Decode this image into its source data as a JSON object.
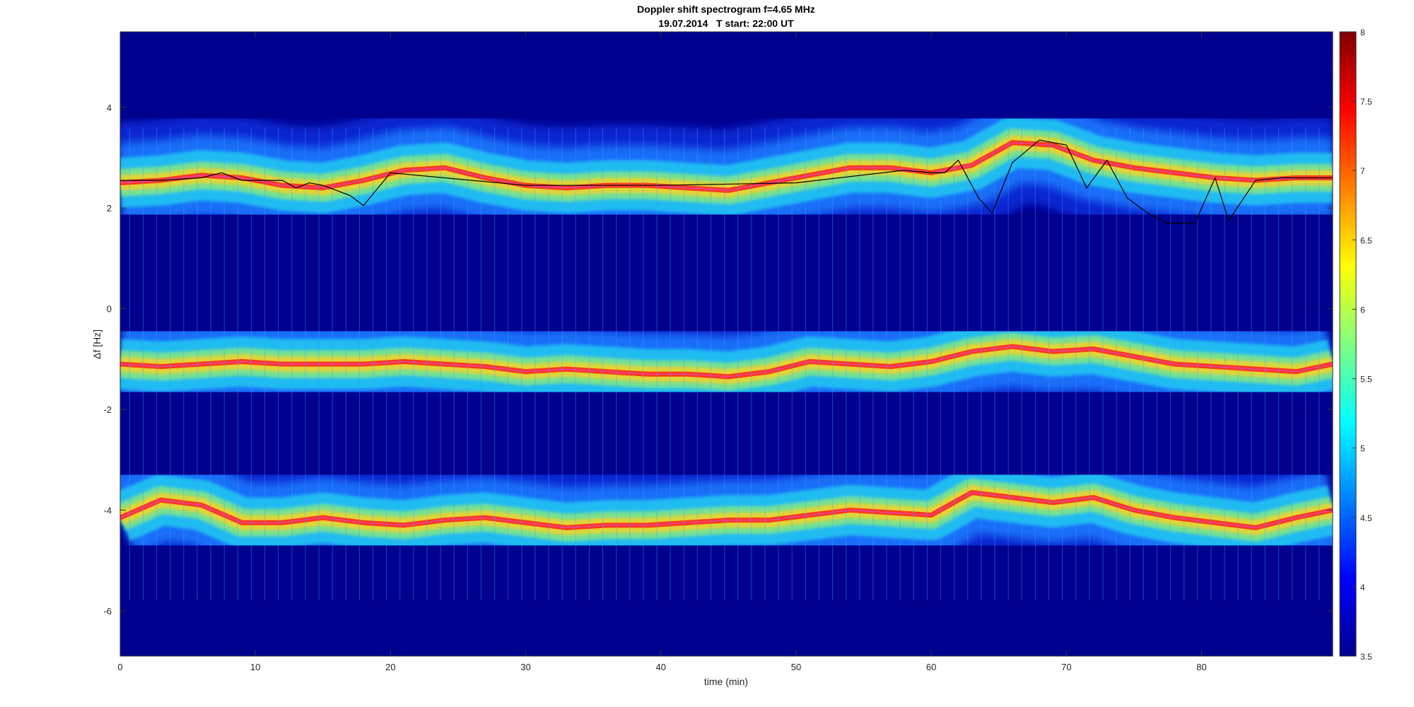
{
  "chart_data": {
    "type": "heatmap",
    "title": "Doppler shift spectrogram f=4.65 MHz",
    "subtitle": "19.07.2014   T start: 22:00 UT",
    "xlabel": "time (min)",
    "ylabel": "Δf [Hz]",
    "xlim": [
      0,
      89.7
    ],
    "ylim": [
      -6.9,
      5.5
    ],
    "x_ticks": [
      0,
      10,
      20,
      30,
      40,
      50,
      60,
      70,
      80
    ],
    "y_ticks": [
      -6,
      -4,
      -2,
      0,
      2,
      4
    ],
    "colorbar": {
      "colormap": "jet",
      "range": [
        3.5,
        8
      ],
      "ticks": [
        3.5,
        4,
        4.5,
        5,
        5.5,
        6,
        6.5,
        7,
        7.5,
        8
      ]
    },
    "bands": [
      {
        "x": [
          0,
          3,
          6,
          9,
          12,
          15,
          18,
          21,
          24,
          27,
          30,
          33,
          36,
          39,
          42,
          45,
          48,
          51,
          54,
          57,
          60,
          63,
          66,
          69,
          72,
          75,
          78,
          81,
          84,
          87,
          89.7
        ],
        "y": [
          2.5,
          2.55,
          2.65,
          2.6,
          2.45,
          2.4,
          2.55,
          2.75,
          2.8,
          2.6,
          2.45,
          2.4,
          2.45,
          2.45,
          2.4,
          2.35,
          2.5,
          2.65,
          2.8,
          2.8,
          2.7,
          2.85,
          3.3,
          3.25,
          2.95,
          2.8,
          2.7,
          2.6,
          2.55,
          2.6,
          2.6
        ]
      },
      {
        "x": [
          0,
          3,
          6,
          9,
          12,
          15,
          18,
          21,
          24,
          27,
          30,
          33,
          36,
          39,
          42,
          45,
          48,
          51,
          54,
          57,
          60,
          63,
          66,
          69,
          72,
          75,
          78,
          81,
          84,
          87,
          89.7
        ],
        "y": [
          -1.1,
          -1.15,
          -1.1,
          -1.05,
          -1.1,
          -1.1,
          -1.1,
          -1.05,
          -1.1,
          -1.15,
          -1.25,
          -1.2,
          -1.25,
          -1.3,
          -1.3,
          -1.35,
          -1.25,
          -1.05,
          -1.1,
          -1.15,
          -1.05,
          -0.85,
          -0.75,
          -0.85,
          -0.8,
          -0.95,
          -1.1,
          -1.15,
          -1.2,
          -1.25,
          -1.1
        ]
      },
      {
        "x": [
          0,
          3,
          6,
          9,
          12,
          15,
          18,
          21,
          24,
          27,
          30,
          33,
          36,
          39,
          42,
          45,
          48,
          51,
          54,
          57,
          60,
          63,
          66,
          69,
          72,
          75,
          78,
          81,
          84,
          87,
          89.7
        ],
        "y": [
          -4.15,
          -3.8,
          -3.9,
          -4.25,
          -4.25,
          -4.15,
          -4.25,
          -4.3,
          -4.2,
          -4.15,
          -4.25,
          -4.35,
          -4.3,
          -4.3,
          -4.25,
          -4.2,
          -4.2,
          -4.1,
          -4.0,
          -4.05,
          -4.1,
          -3.65,
          -3.75,
          -3.85,
          -3.75,
          -4.0,
          -4.15,
          -4.25,
          -4.35,
          -4.15,
          -4.0
        ]
      }
    ],
    "black_trace": {
      "x": [
        0,
        3,
        6,
        7.5,
        9,
        12,
        13,
        14,
        15,
        17,
        18,
        20,
        30,
        40,
        50,
        58,
        60,
        61,
        62,
        63.5,
        64.5,
        66,
        68,
        70,
        71.5,
        73,
        74.5,
        76,
        77.5,
        79.5,
        81,
        82,
        84,
        86,
        89.7
      ],
      "y": [
        2.55,
        2.55,
        2.6,
        2.7,
        2.55,
        2.55,
        2.4,
        2.5,
        2.45,
        2.25,
        2.05,
        2.7,
        2.45,
        2.45,
        2.5,
        2.75,
        2.7,
        2.7,
        2.95,
        2.2,
        1.9,
        2.9,
        3.35,
        3.25,
        2.4,
        2.95,
        2.2,
        1.9,
        1.7,
        1.7,
        2.6,
        1.75,
        2.55,
        2.6,
        2.6
      ]
    }
  }
}
